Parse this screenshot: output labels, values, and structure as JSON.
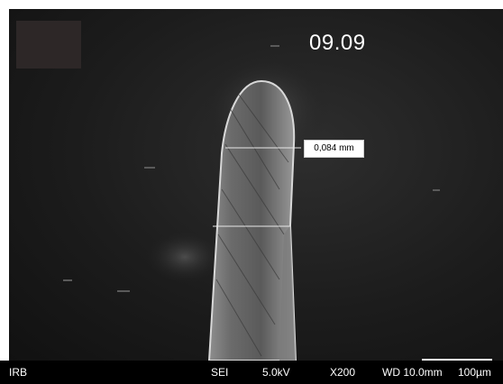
{
  "overlay": {
    "sample_id": "09.09",
    "measurement": "0,084 mm"
  },
  "info_bar": {
    "institution": "IRB",
    "detector": "SEI",
    "voltage": "5.0kV",
    "magnification": "X200",
    "working_distance": "WD 10.0mm",
    "scale": "100µm"
  },
  "colors": {
    "background": "#ffffff",
    "sem_background": "#1c1c1c",
    "info_bar": "#000000",
    "label_box": "#ffffff"
  }
}
